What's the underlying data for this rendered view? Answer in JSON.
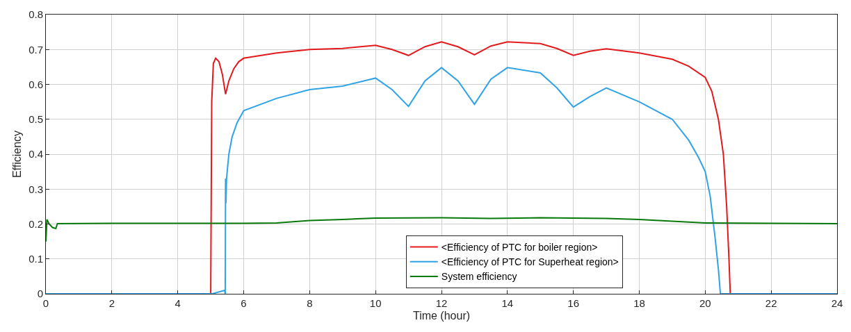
{
  "chart_data": {
    "type": "line",
    "xlabel": "Time (hour)",
    "ylabel": "Efficiency",
    "xlim": [
      0,
      24
    ],
    "xticks": [
      0,
      2,
      4,
      6,
      8,
      10,
      12,
      14,
      16,
      18,
      20,
      22,
      24
    ],
    "ylim": [
      0,
      0.8
    ],
    "yticks": [
      0,
      0.1,
      0.2,
      0.3,
      0.4,
      0.5,
      0.6,
      0.7,
      0.8
    ],
    "grid": true,
    "legend": "bottom",
    "marker": "none",
    "line_style": "solid",
    "series": [
      {
        "name": "<Efficiency of PTC for boiler region>",
        "color": "#e3191c",
        "x": [
          0,
          5.0,
          5.03,
          5.08,
          5.15,
          5.25,
          5.35,
          5.45,
          5.55,
          5.7,
          5.85,
          6,
          7,
          8,
          9,
          10,
          10.5,
          11,
          11.5,
          12,
          12.5,
          13,
          13.5,
          14,
          15,
          15.5,
          16,
          16.5,
          17,
          18,
          19,
          19.5,
          20,
          20.2,
          20.4,
          20.55,
          20.65,
          20.72,
          20.76,
          24
        ],
        "values": [
          0,
          0,
          0.55,
          0.66,
          0.675,
          0.665,
          0.63,
          0.572,
          0.61,
          0.645,
          0.665,
          0.675,
          0.69,
          0.7,
          0.703,
          0.712,
          0.7,
          0.683,
          0.708,
          0.722,
          0.708,
          0.685,
          0.71,
          0.722,
          0.717,
          0.703,
          0.683,
          0.695,
          0.702,
          0.69,
          0.672,
          0.652,
          0.62,
          0.58,
          0.5,
          0.4,
          0.25,
          0.1,
          0,
          0
        ]
      },
      {
        "name": "<Efficiency of PTC for Superheat region>",
        "color": "#2fa3e6",
        "x": [
          0,
          5.05,
          5.42,
          5.44,
          5.45,
          5.46,
          5.48,
          5.55,
          5.65,
          5.8,
          6,
          7,
          8,
          9,
          10,
          10.5,
          11,
          11.5,
          12,
          12.5,
          13,
          13.5,
          14,
          15,
          15.5,
          16,
          16.5,
          17,
          18,
          19,
          19.5,
          19.8,
          20,
          20.15,
          20.3,
          20.4,
          20.46,
          24
        ],
        "values": [
          0,
          0,
          0.01,
          0,
          0.33,
          0.26,
          0.33,
          0.4,
          0.45,
          0.49,
          0.525,
          0.56,
          0.585,
          0.595,
          0.618,
          0.585,
          0.537,
          0.61,
          0.648,
          0.61,
          0.543,
          0.615,
          0.648,
          0.633,
          0.59,
          0.535,
          0.565,
          0.59,
          0.55,
          0.5,
          0.44,
          0.39,
          0.35,
          0.28,
          0.16,
          0.07,
          0,
          0
        ]
      },
      {
        "name": "System efficiency",
        "color": "#087a0a",
        "x": [
          0,
          0.03,
          0.1,
          0.2,
          0.3,
          0.35,
          2,
          6,
          7,
          8,
          9,
          10,
          12,
          13.5,
          15,
          17,
          18,
          19,
          20,
          22,
          24
        ],
        "values": [
          0.15,
          0.213,
          0.2,
          0.19,
          0.187,
          0.201,
          0.202,
          0.202,
          0.203,
          0.21,
          0.213,
          0.217,
          0.218,
          0.216,
          0.218,
          0.216,
          0.213,
          0.208,
          0.203,
          0.202,
          0.201
        ]
      }
    ]
  }
}
